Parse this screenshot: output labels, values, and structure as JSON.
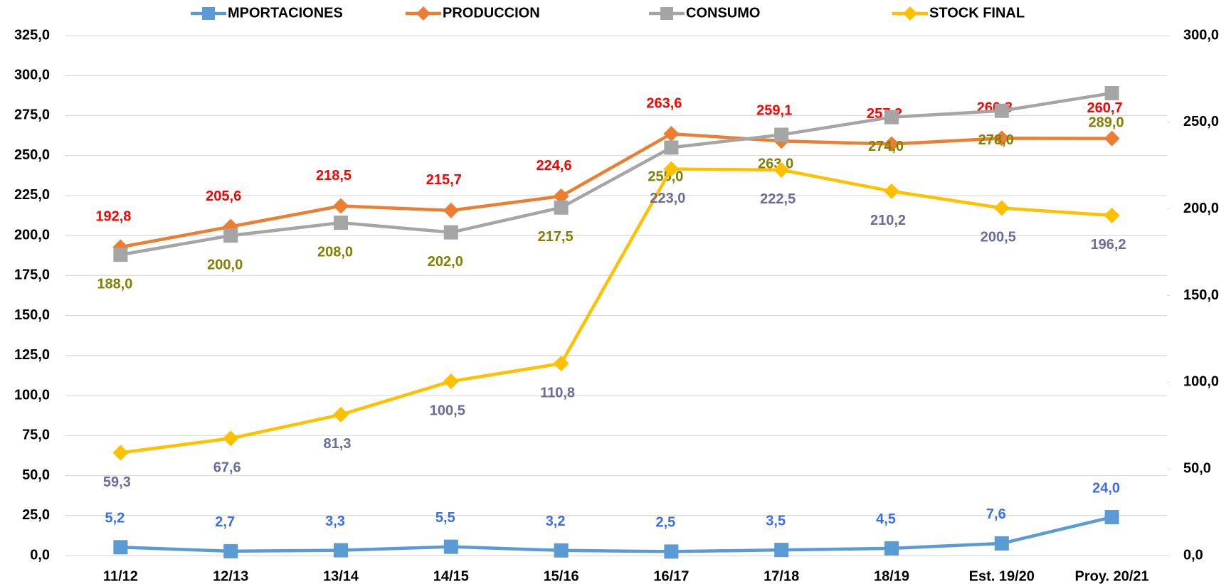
{
  "chart_data": {
    "type": "line",
    "categories": [
      "11/12",
      "12/13",
      "13/14",
      "14/15",
      "15/16",
      "16/17",
      "17/18",
      "18/19",
      "Est. 19/20",
      "Proy. 20/21"
    ],
    "series": [
      {
        "name": "MPORTACIONES",
        "color": "#5b9bd5",
        "label_color": "#3a6ee8",
        "marker": "square",
        "axis": "y",
        "values": [
          5.2,
          2.7,
          3.3,
          5.5,
          3.2,
          2.5,
          3.5,
          4.5,
          7.6,
          24.0
        ],
        "value_labels": [
          "5,2",
          "2,7",
          "3,3",
          "5,5",
          "3,2",
          "2,5",
          "3,5",
          "4,5",
          "7,6",
          "24,0"
        ]
      },
      {
        "name": "PRODUCCION",
        "color": "#ed7d31",
        "label_color": "#ff0000",
        "marker": "diamond",
        "axis": "y",
        "values": [
          192.8,
          205.6,
          218.5,
          215.7,
          224.6,
          263.6,
          259.1,
          257.2,
          260.8,
          260.7
        ],
        "value_labels": [
          "192,8",
          "205,6",
          "218,5",
          "215,7",
          "224,6",
          "263,6",
          "259,1",
          "257,2",
          "260,8",
          "260,7"
        ]
      },
      {
        "name": "CONSUMO",
        "color": "#a5a5a5",
        "label_color": "#808000",
        "marker": "square",
        "axis": "y",
        "values": [
          188.0,
          200.0,
          208.0,
          202.0,
          217.5,
          255.0,
          263.0,
          274.0,
          278.0,
          289.0
        ],
        "value_labels": [
          "188,0",
          "200,0",
          "208,0",
          "202,0",
          "217,5",
          "255,0",
          "263,0",
          "274,0",
          "278,0",
          "289,0"
        ]
      },
      {
        "name": "STOCK FINAL",
        "color": "#ffc000",
        "label_color": "#6b6b9b",
        "marker": "diamond",
        "axis": "y2",
        "values": [
          59.3,
          67.6,
          81.3,
          100.5,
          110.8,
          223.0,
          222.5,
          210.2,
          200.5,
          196.2
        ],
        "value_labels": [
          "59,3",
          "67,6",
          "81,3",
          "100,5",
          "110,8",
          "223,0",
          "222,5",
          "210,2",
          "200,5",
          "196,2"
        ]
      }
    ],
    "ylim": [
      0,
      325
    ],
    "yticks": [
      {
        "value": 0,
        "label": "0,0"
      },
      {
        "value": 25,
        "label": "25,0"
      },
      {
        "value": 50,
        "label": "50,0"
      },
      {
        "value": 75,
        "label": "75,0"
      },
      {
        "value": 100,
        "label": "100,0"
      },
      {
        "value": 125,
        "label": "125,0"
      },
      {
        "value": 150,
        "label": "150,0"
      },
      {
        "value": 175,
        "label": "175,0"
      },
      {
        "value": 200,
        "label": "200,0"
      },
      {
        "value": 225,
        "label": "225,0"
      },
      {
        "value": 250,
        "label": "250,0"
      },
      {
        "value": 275,
        "label": "275,0"
      },
      {
        "value": 300,
        "label": "300,0"
      },
      {
        "value": 325,
        "label": "325,0"
      }
    ],
    "y2lim": [
      0,
      300
    ],
    "y2ticks": [
      {
        "value": 0,
        "label": "0,0"
      },
      {
        "value": 50,
        "label": "50,0"
      },
      {
        "value": 100,
        "label": "100,0"
      },
      {
        "value": 150,
        "label": "150,0"
      },
      {
        "value": 200,
        "label": "200,0"
      },
      {
        "value": 250,
        "label": "250,0"
      },
      {
        "value": 300,
        "label": "300,0"
      }
    ],
    "grid": true,
    "legend": "top"
  }
}
